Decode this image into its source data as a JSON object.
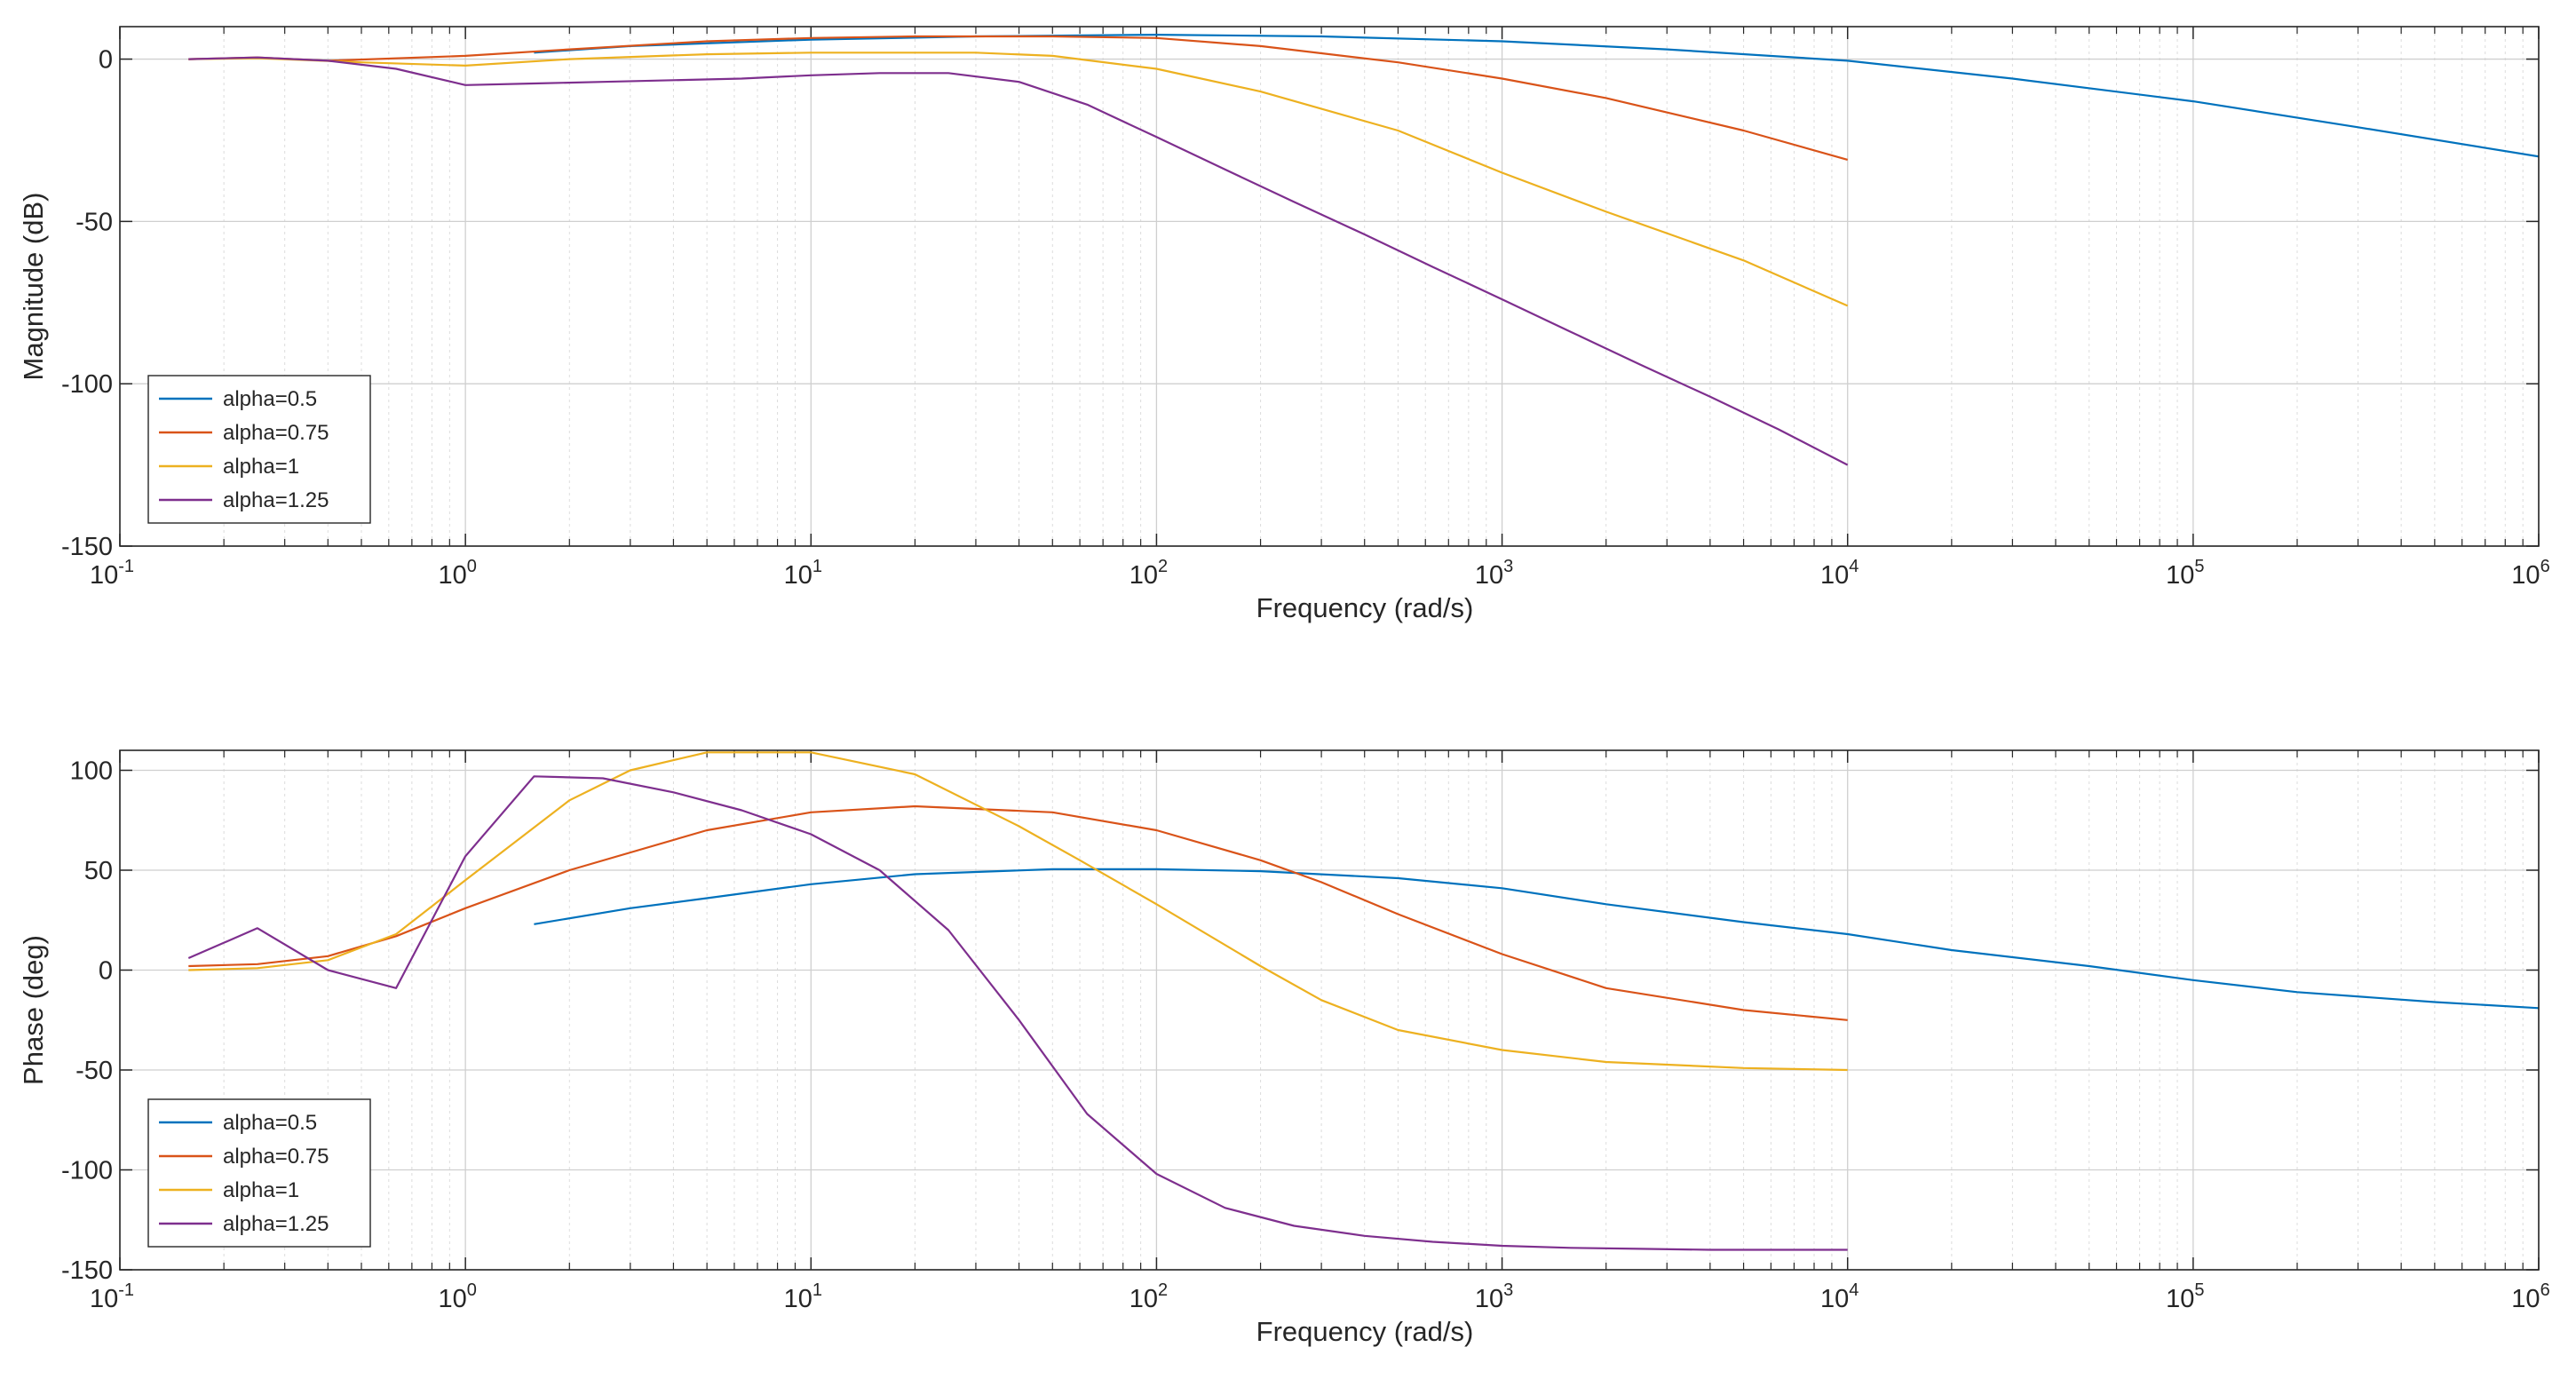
{
  "chart_data": [
    {
      "type": "line",
      "title": "",
      "xlabel": "Frequency (rad/s)",
      "ylabel": "Magnitude (dB)",
      "xscale": "log",
      "xlim": [
        0.1,
        1000000
      ],
      "ylim": [
        -150,
        10
      ],
      "xticks": [
        {
          "base": "10",
          "exp": "-1",
          "value": 0.1
        },
        {
          "base": "10",
          "exp": "0",
          "value": 1
        },
        {
          "base": "10",
          "exp": "1",
          "value": 10
        },
        {
          "base": "10",
          "exp": "2",
          "value": 100
        },
        {
          "base": "10",
          "exp": "3",
          "value": 1000
        },
        {
          "base": "10",
          "exp": "4",
          "value": 10000
        },
        {
          "base": "10",
          "exp": "5",
          "value": 100000
        },
        {
          "base": "10",
          "exp": "6",
          "value": 1000000
        }
      ],
      "yticks": [
        {
          "label": "0",
          "value": 0
        },
        {
          "label": "-50",
          "value": -50
        },
        {
          "label": "-100",
          "value": -100
        },
        {
          "label": "-150",
          "value": -150
        }
      ],
      "grid": true,
      "legend_position": "bottom-left",
      "series": [
        {
          "name": "alpha=0.5",
          "color": "#0072BD",
          "points": [
            [
              1.58,
              2
            ],
            [
              3,
              4
            ],
            [
              10,
              6
            ],
            [
              30,
              7
            ],
            [
              100,
              7.5
            ],
            [
              300,
              7
            ],
            [
              1000,
              5.5
            ],
            [
              3000,
              3
            ],
            [
              10000,
              -0.5
            ],
            [
              30000,
              -6
            ],
            [
              100000,
              -13
            ],
            [
              300000,
              -21
            ],
            [
              1000000,
              -30
            ]
          ]
        },
        {
          "name": "alpha=0.75",
          "color": "#D95319",
          "points": [
            [
              0.158,
              0
            ],
            [
              0.25,
              0.5
            ],
            [
              0.4,
              -0.5
            ],
            [
              1,
              1
            ],
            [
              2,
              3
            ],
            [
              5,
              5.5
            ],
            [
              10,
              6.5
            ],
            [
              20,
              7
            ],
            [
              50,
              7
            ],
            [
              100,
              6.5
            ],
            [
              200,
              4
            ],
            [
              500,
              -1
            ],
            [
              1000,
              -6
            ],
            [
              2000,
              -12
            ],
            [
              5000,
              -22
            ],
            [
              10000,
              -31
            ]
          ]
        },
        {
          "name": "alpha=1",
          "color": "#EDB120",
          "points": [
            [
              0.158,
              0
            ],
            [
              0.25,
              0.3
            ],
            [
              0.5,
              -1
            ],
            [
              1,
              -2
            ],
            [
              2,
              0
            ],
            [
              5,
              1.5
            ],
            [
              10,
              2
            ],
            [
              30,
              2
            ],
            [
              50,
              1
            ],
            [
              100,
              -3
            ],
            [
              200,
              -10
            ],
            [
              500,
              -22
            ],
            [
              1000,
              -35
            ],
            [
              2000,
              -47
            ],
            [
              5000,
              -62
            ],
            [
              10000,
              -76
            ]
          ]
        },
        {
          "name": "alpha=1.25",
          "color": "#7E2F8E",
          "points": [
            [
              0.158,
              0
            ],
            [
              0.25,
              0.5
            ],
            [
              0.4,
              -0.5
            ],
            [
              0.63,
              -3
            ],
            [
              1,
              -8
            ],
            [
              1.58,
              -7.5
            ],
            [
              2.5,
              -7
            ],
            [
              4,
              -6.5
            ],
            [
              6.3,
              -6
            ],
            [
              10,
              -5
            ],
            [
              15.8,
              -4.3
            ],
            [
              25,
              -4.3
            ],
            [
              40,
              -7
            ],
            [
              63,
              -14
            ],
            [
              100,
              -24
            ],
            [
              158,
              -34
            ],
            [
              250,
              -44
            ],
            [
              400,
              -54
            ],
            [
              630,
              -64
            ],
            [
              1000,
              -74
            ],
            [
              1580,
              -84
            ],
            [
              2500,
              -94
            ],
            [
              4000,
              -104
            ],
            [
              6300,
              -114
            ],
            [
              10000,
              -125
            ]
          ]
        }
      ]
    },
    {
      "type": "line",
      "title": "",
      "xlabel": "Frequency (rad/s)",
      "ylabel": "Phase (deg)",
      "xscale": "log",
      "xlim": [
        0.1,
        1000000
      ],
      "ylim": [
        -150,
        110
      ],
      "xticks": [
        {
          "base": "10",
          "exp": "-1",
          "value": 0.1
        },
        {
          "base": "10",
          "exp": "0",
          "value": 1
        },
        {
          "base": "10",
          "exp": "1",
          "value": 10
        },
        {
          "base": "10",
          "exp": "2",
          "value": 100
        },
        {
          "base": "10",
          "exp": "3",
          "value": 1000
        },
        {
          "base": "10",
          "exp": "4",
          "value": 10000
        },
        {
          "base": "10",
          "exp": "5",
          "value": 100000
        },
        {
          "base": "10",
          "exp": "6",
          "value": 1000000
        }
      ],
      "yticks": [
        {
          "label": "100",
          "value": 100
        },
        {
          "label": "50",
          "value": 50
        },
        {
          "label": "0",
          "value": 0
        },
        {
          "label": "-50",
          "value": -50
        },
        {
          "label": "-100",
          "value": -100
        },
        {
          "label": "-150",
          "value": -150
        }
      ],
      "grid": true,
      "legend_position": "bottom-left",
      "series": [
        {
          "name": "alpha=0.5",
          "color": "#0072BD",
          "points": [
            [
              1.58,
              23
            ],
            [
              3,
              31
            ],
            [
              5,
              36
            ],
            [
              10,
              43
            ],
            [
              20,
              48
            ],
            [
              50,
              50.5
            ],
            [
              100,
              50.5
            ],
            [
              200,
              49.5
            ],
            [
              500,
              46
            ],
            [
              1000,
              41
            ],
            [
              2000,
              33
            ],
            [
              5000,
              24
            ],
            [
              10000,
              18
            ],
            [
              20000,
              10
            ],
            [
              50000,
              2
            ],
            [
              100000,
              -5
            ],
            [
              200000,
              -11
            ],
            [
              500000,
              -16
            ],
            [
              1000000,
              -19
            ]
          ]
        },
        {
          "name": "alpha=0.75",
          "color": "#D95319",
          "points": [
            [
              0.158,
              2
            ],
            [
              0.25,
              3
            ],
            [
              0.4,
              7
            ],
            [
              0.63,
              17
            ],
            [
              1,
              31
            ],
            [
              2,
              50
            ],
            [
              5,
              70
            ],
            [
              10,
              79
            ],
            [
              20,
              82
            ],
            [
              50,
              79
            ],
            [
              100,
              70
            ],
            [
              200,
              55
            ],
            [
              300,
              44
            ],
            [
              500,
              28
            ],
            [
              1000,
              8
            ],
            [
              2000,
              -9
            ],
            [
              5000,
              -20
            ],
            [
              10000,
              -25
            ]
          ]
        },
        {
          "name": "alpha=1",
          "color": "#EDB120",
          "points": [
            [
              0.158,
              0
            ],
            [
              0.25,
              1
            ],
            [
              0.4,
              5
            ],
            [
              0.63,
              18
            ],
            [
              1,
              45
            ],
            [
              2,
              85
            ],
            [
              3,
              100
            ],
            [
              5,
              109
            ],
            [
              10,
              109
            ],
            [
              20,
              98
            ],
            [
              40,
              72
            ],
            [
              60,
              55
            ],
            [
              100,
              33
            ],
            [
              200,
              2
            ],
            [
              300,
              -15
            ],
            [
              500,
              -30
            ],
            [
              1000,
              -40
            ],
            [
              2000,
              -46
            ],
            [
              5000,
              -49
            ],
            [
              10000,
              -50
            ]
          ]
        },
        {
          "name": "alpha=1.25",
          "color": "#7E2F8E",
          "points": [
            [
              0.158,
              6
            ],
            [
              0.25,
              21
            ],
            [
              0.4,
              0
            ],
            [
              0.63,
              -9
            ],
            [
              1,
              57
            ],
            [
              1.58,
              97
            ],
            [
              2.5,
              96
            ],
            [
              4,
              89
            ],
            [
              6.3,
              80
            ],
            [
              10,
              68
            ],
            [
              15.8,
              50
            ],
            [
              25,
              20
            ],
            [
              40,
              -25
            ],
            [
              63,
              -72
            ],
            [
              100,
              -102
            ],
            [
              158,
              -119
            ],
            [
              250,
              -128
            ],
            [
              400,
              -133
            ],
            [
              630,
              -136
            ],
            [
              1000,
              -138
            ],
            [
              1580,
              -139
            ],
            [
              2500,
              -139.5
            ],
            [
              4000,
              -140
            ],
            [
              6300,
              -140
            ],
            [
              10000,
              -140
            ]
          ]
        }
      ]
    }
  ]
}
